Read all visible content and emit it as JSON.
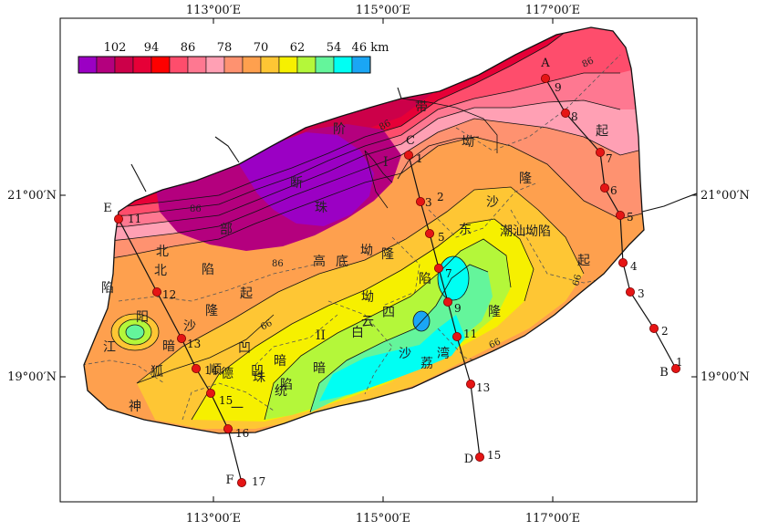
{
  "axes": {
    "x_ticks": [
      "113°00′E",
      "115°00′E",
      "117°00′E"
    ],
    "y_ticks": [
      "21°00′N",
      "19°00′N"
    ]
  },
  "legend": {
    "values": [
      "102",
      "94",
      "86",
      "78",
      "70",
      "62",
      "54",
      "46 km"
    ],
    "colors": [
      "#9b00c4",
      "#b4007e",
      "#cc0049",
      "#e60037",
      "#fe0000",
      "#fe4d6c",
      "#fe7891",
      "#ffa0b4",
      "#fe9270",
      "#fea04e",
      "#fec634",
      "#f6f000",
      "#b4f73a",
      "#64f59b",
      "#00fff3",
      "#1aa6f5"
    ]
  },
  "isolines": [
    "86",
    "86",
    "86",
    "86",
    "66",
    "66",
    "66",
    "II",
    "I"
  ],
  "regions": [
    "阶",
    "带",
    "坳",
    "起",
    "隆",
    "沙",
    "潮汕坳陷",
    "起",
    "隆",
    "东",
    "断",
    "珠",
    "部",
    "北",
    "陷",
    "坳",
    "起",
    "隆",
    "高",
    "底",
    "隆",
    "坳",
    "陷",
    "四",
    "云",
    "白",
    "沙",
    "荔",
    "湾",
    "凹",
    "暗",
    "陷",
    "凹",
    "珠",
    "德",
    "统",
    "暗",
    "顺",
    "狐",
    "神",
    "阳",
    "北",
    "沙",
    "暗",
    "江",
    "陷",
    "一"
  ],
  "profiles": [
    {
      "start": "A",
      "end": "B",
      "stations": [
        "9",
        "8",
        "7",
        "6",
        "5",
        "4",
        "3",
        "2",
        "1"
      ]
    },
    {
      "start": "C",
      "end": "D",
      "stations": [
        "1",
        "3",
        "5",
        "7",
        "9",
        "11",
        "13",
        "15"
      ],
      "extra_labels": [
        "2"
      ]
    },
    {
      "start": "E",
      "end": "F",
      "stations": [
        "11",
        "12",
        "13",
        "14",
        "15",
        "16",
        "17"
      ]
    }
  ]
}
